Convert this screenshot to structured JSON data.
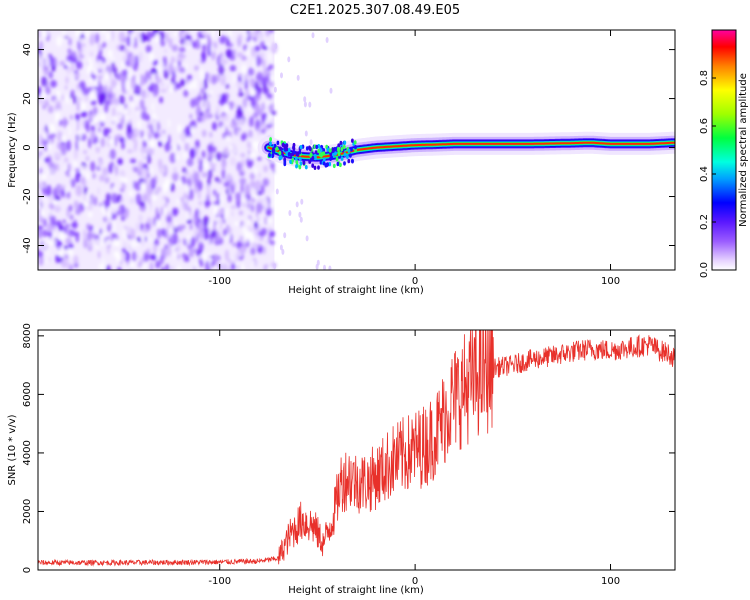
{
  "title": "C2E1.2025.307.08.49.E05",
  "chart_data": [
    {
      "type": "heatmap",
      "xlabel": "Height of straight line (km)",
      "ylabel": "Frequency (Hz)",
      "xlim": [
        -193,
        133
      ],
      "ylim": [
        -50,
        48
      ],
      "xticks": [
        -100,
        0,
        100
      ],
      "yticks": [
        -40,
        -20,
        0,
        20,
        40
      ],
      "noise_region_x": [
        -193,
        -72
      ],
      "signal_start_x": -75,
      "ridge": {
        "x": [
          -75,
          -68,
          -60,
          -50,
          -40,
          -30,
          -20,
          -10,
          0,
          10,
          20,
          40,
          60,
          80,
          90,
          100,
          120,
          133
        ],
        "freq": [
          0,
          -2,
          -3.5,
          -4,
          -3,
          -1,
          0,
          0.5,
          1,
          1.2,
          1.5,
          1.5,
          1.5,
          1.8,
          2,
          1.5,
          1.5,
          2
        ]
      },
      "colorbar": {
        "label": "Normalized spectral amplitude",
        "range": [
          0,
          1
        ],
        "ticks": [
          "0.0",
          "0.2",
          "0.4",
          "0.6",
          "0.8"
        ],
        "tick_values": [
          0,
          0.2,
          0.4,
          0.6,
          0.8
        ]
      }
    },
    {
      "type": "line",
      "xlabel": "Height of straight line (km)",
      "ylabel": "SNR (10 * v/v)",
      "xlim": [
        -193,
        133
      ],
      "ylim": [
        0,
        8200
      ],
      "xticks": [
        -100,
        0,
        100
      ],
      "yticks": [
        0,
        2000,
        4000,
        6000,
        8000
      ],
      "series": [
        {
          "name": "SNR",
          "color": "#e8302a",
          "x": [
            -193,
            -150,
            -100,
            -80,
            -70,
            -64,
            -58,
            -52,
            -47,
            -42,
            -38,
            -34,
            -30,
            -24,
            -18,
            -12,
            -6,
            0,
            6,
            12,
            18,
            24,
            30,
            40,
            50,
            60,
            70,
            80,
            90,
            100,
            110,
            120,
            125,
            130,
            133
          ],
          "values": [
            250,
            250,
            270,
            300,
            400,
            1200,
            1700,
            1500,
            900,
            1800,
            3000,
            3200,
            3000,
            3000,
            3300,
            3700,
            3900,
            4100,
            4300,
            4800,
            5700,
            6100,
            6500,
            6900,
            7000,
            7200,
            7300,
            7450,
            7550,
            7500,
            7600,
            7700,
            7500,
            7400,
            7200
          ]
        }
      ]
    }
  ]
}
